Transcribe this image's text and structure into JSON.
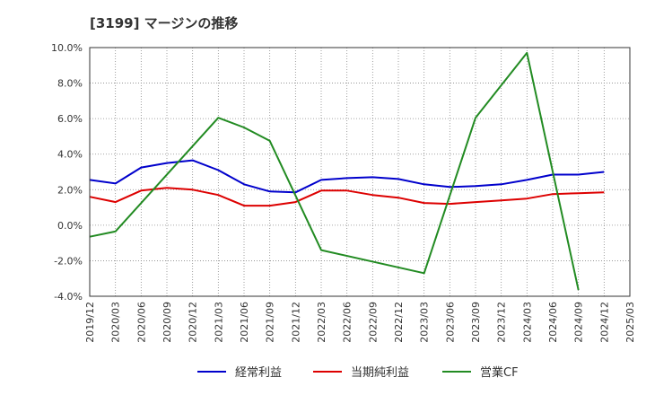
{
  "chart_data": {
    "type": "line",
    "title": "[3199]  マージンの推移",
    "xlabel": "",
    "ylabel": "",
    "ylim": [
      -4.0,
      10.0
    ],
    "y_ticks": [
      "10.0%",
      "8.0%",
      "6.0%",
      "4.0%",
      "2.0%",
      "0.0%",
      "-2.0%",
      "-4.0%"
    ],
    "y_tick_values": [
      10,
      8,
      6,
      4,
      2,
      0,
      -2,
      -4
    ],
    "categories": [
      "2019/12",
      "2020/03",
      "2020/06",
      "2020/09",
      "2020/12",
      "2021/03",
      "2021/06",
      "2021/09",
      "2021/12",
      "2022/03",
      "2022/06",
      "2022/09",
      "2022/12",
      "2023/03",
      "2023/06",
      "2023/09",
      "2023/12",
      "2024/03",
      "2024/06",
      "2024/09",
      "2024/12",
      "2025/03"
    ],
    "grid": true,
    "legend_position": "bottom",
    "series": [
      {
        "name": "経常利益",
        "color": "#0000cc",
        "values": [
          2.55,
          2.35,
          3.25,
          3.5,
          3.65,
          3.1,
          2.3,
          1.9,
          1.85,
          2.55,
          2.65,
          2.7,
          2.6,
          2.3,
          2.15,
          2.2,
          2.3,
          2.55,
          2.85,
          2.85,
          3.0,
          null
        ]
      },
      {
        "name": "当期純利益",
        "color": "#dd0000",
        "values": [
          1.6,
          1.3,
          1.95,
          2.1,
          2.0,
          1.7,
          1.1,
          1.1,
          1.3,
          1.95,
          1.95,
          1.7,
          1.55,
          1.25,
          1.2,
          1.3,
          1.4,
          1.5,
          1.75,
          1.8,
          1.85,
          null
        ]
      },
      {
        "name": "営業CF",
        "color": "#228b22",
        "values": [
          -0.65,
          -0.35,
          null,
          null,
          null,
          6.05,
          5.5,
          4.75,
          null,
          -1.4,
          null,
          null,
          null,
          -2.7,
          null,
          6.05,
          null,
          9.7,
          null,
          -3.65,
          null,
          null
        ]
      }
    ]
  }
}
